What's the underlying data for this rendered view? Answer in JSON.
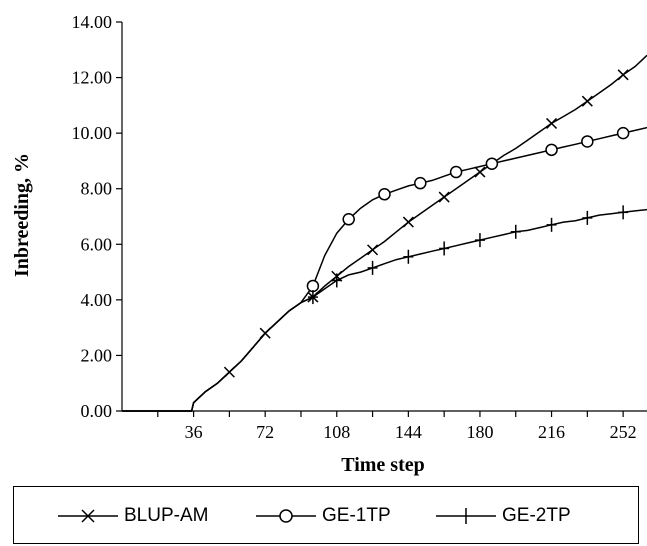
{
  "chart_data": {
    "type": "line",
    "xlabel": "Time step",
    "ylabel": "Inbreeding, %",
    "xlim": [
      0,
      264
    ],
    "ylim": [
      0,
      14
    ],
    "x_ticks": [
      36,
      72,
      108,
      144,
      180,
      216,
      252
    ],
    "y_ticks": [
      "0.00",
      "2.00",
      "4.00",
      "6.00",
      "8.00",
      "10.00",
      "12.00",
      "14.00"
    ],
    "grid": false,
    "legend_position": "bottom",
    "series": [
      {
        "name": "BLUP-AM",
        "marker": "x",
        "color": "#000000",
        "points": [
          [
            0,
            0
          ],
          [
            35,
            0
          ],
          [
            36,
            0.3
          ],
          [
            42,
            0.7
          ],
          [
            48,
            1.0
          ],
          [
            54,
            1.4
          ],
          [
            60,
            1.8
          ],
          [
            66,
            2.3
          ],
          [
            72,
            2.8
          ],
          [
            78,
            3.2
          ],
          [
            84,
            3.6
          ],
          [
            90,
            3.9
          ],
          [
            96,
            4.1
          ],
          [
            102,
            4.5
          ],
          [
            108,
            4.85
          ],
          [
            114,
            5.2
          ],
          [
            120,
            5.5
          ],
          [
            126,
            5.8
          ],
          [
            132,
            6.1
          ],
          [
            138,
            6.45
          ],
          [
            144,
            6.8
          ],
          [
            150,
            7.1
          ],
          [
            156,
            7.4
          ],
          [
            162,
            7.7
          ],
          [
            168,
            8.0
          ],
          [
            174,
            8.3
          ],
          [
            180,
            8.6
          ],
          [
            186,
            8.9
          ],
          [
            192,
            9.2
          ],
          [
            198,
            9.45
          ],
          [
            204,
            9.75
          ],
          [
            210,
            10.05
          ],
          [
            216,
            10.35
          ],
          [
            222,
            10.6
          ],
          [
            228,
            10.85
          ],
          [
            234,
            11.15
          ],
          [
            240,
            11.45
          ],
          [
            246,
            11.75
          ],
          [
            252,
            12.1
          ],
          [
            258,
            12.4
          ],
          [
            264,
            12.8
          ]
        ],
        "marker_x": [
          54,
          72,
          96,
          108,
          126,
          144,
          162,
          180,
          216,
          234,
          252
        ]
      },
      {
        "name": "GE-1TP",
        "marker": "o",
        "color": "#000000",
        "points": [
          [
            0,
            0
          ],
          [
            35,
            0
          ],
          [
            36,
            0.3
          ],
          [
            42,
            0.7
          ],
          [
            48,
            1.0
          ],
          [
            54,
            1.4
          ],
          [
            60,
            1.8
          ],
          [
            66,
            2.3
          ],
          [
            72,
            2.8
          ],
          [
            78,
            3.2
          ],
          [
            84,
            3.6
          ],
          [
            90,
            3.9
          ],
          [
            96,
            4.5
          ],
          [
            102,
            5.6
          ],
          [
            108,
            6.4
          ],
          [
            114,
            6.9
          ],
          [
            120,
            7.3
          ],
          [
            126,
            7.6
          ],
          [
            132,
            7.8
          ],
          [
            138,
            7.95
          ],
          [
            144,
            8.1
          ],
          [
            150,
            8.2
          ],
          [
            156,
            8.3
          ],
          [
            162,
            8.45
          ],
          [
            168,
            8.6
          ],
          [
            174,
            8.7
          ],
          [
            180,
            8.8
          ],
          [
            186,
            8.9
          ],
          [
            192,
            9.0
          ],
          [
            198,
            9.1
          ],
          [
            204,
            9.2
          ],
          [
            210,
            9.3
          ],
          [
            216,
            9.4
          ],
          [
            222,
            9.5
          ],
          [
            228,
            9.6
          ],
          [
            234,
            9.7
          ],
          [
            240,
            9.8
          ],
          [
            246,
            9.9
          ],
          [
            252,
            10.0
          ],
          [
            258,
            10.1
          ],
          [
            264,
            10.2
          ]
        ],
        "marker_x": [
          96,
          114,
          132,
          150,
          168,
          186,
          216,
          234,
          252
        ]
      },
      {
        "name": "GE-2TP",
        "marker": "+",
        "color": "#000000",
        "points": [
          [
            0,
            0
          ],
          [
            35,
            0
          ],
          [
            36,
            0.3
          ],
          [
            42,
            0.7
          ],
          [
            48,
            1.0
          ],
          [
            54,
            1.4
          ],
          [
            60,
            1.8
          ],
          [
            66,
            2.3
          ],
          [
            72,
            2.8
          ],
          [
            78,
            3.2
          ],
          [
            84,
            3.6
          ],
          [
            90,
            3.9
          ],
          [
            96,
            4.1
          ],
          [
            102,
            4.4
          ],
          [
            108,
            4.7
          ],
          [
            114,
            4.9
          ],
          [
            120,
            5.0
          ],
          [
            126,
            5.15
          ],
          [
            132,
            5.3
          ],
          [
            138,
            5.45
          ],
          [
            144,
            5.55
          ],
          [
            150,
            5.65
          ],
          [
            156,
            5.75
          ],
          [
            162,
            5.85
          ],
          [
            168,
            5.95
          ],
          [
            174,
            6.05
          ],
          [
            180,
            6.15
          ],
          [
            186,
            6.25
          ],
          [
            192,
            6.35
          ],
          [
            198,
            6.45
          ],
          [
            204,
            6.5
          ],
          [
            210,
            6.6
          ],
          [
            216,
            6.7
          ],
          [
            222,
            6.8
          ],
          [
            228,
            6.85
          ],
          [
            234,
            6.95
          ],
          [
            240,
            7.05
          ],
          [
            246,
            7.1
          ],
          [
            252,
            7.15
          ],
          [
            258,
            7.2
          ],
          [
            264,
            7.25
          ]
        ],
        "marker_x": [
          96,
          108,
          126,
          144,
          162,
          180,
          198,
          216,
          234,
          252
        ]
      }
    ]
  },
  "legend": {
    "items": [
      "BLUP-AM",
      "GE-1TP",
      "GE-2TP"
    ]
  }
}
